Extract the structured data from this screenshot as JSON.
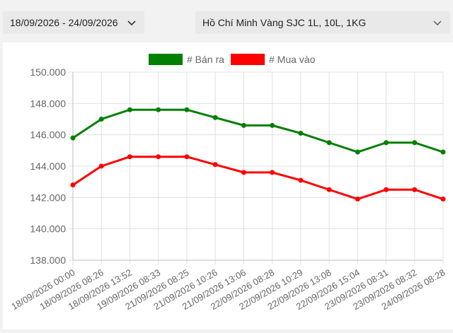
{
  "filters": {
    "date_range": "18/09/2026 - 24/09/2026",
    "location_product": "Hồ Chí Minh Vàng SJC 1L, 10L, 1KG"
  },
  "chart_data": {
    "type": "line",
    "categories": [
      "18/09/2026 00:00",
      "18/09/2026 08:26",
      "18/09/2026 13:52",
      "19/09/2026 08:33",
      "21/09/2026 08:25",
      "21/09/2026 10:26",
      "21/09/2026 13:06",
      "22/09/2026 08:28",
      "22/09/2026 10:29",
      "22/09/2026 13:08",
      "22/09/2026 15:04",
      "23/09/2026 08:31",
      "23/09/2026 08:32",
      "24/09/2026 08:28"
    ],
    "series": [
      {
        "name": "# Bán ra",
        "color": "#008000",
        "values": [
          145.8,
          147.0,
          147.6,
          147.6,
          147.6,
          147.1,
          146.6,
          146.6,
          146.1,
          145.5,
          144.9,
          145.5,
          145.5,
          144.9
        ]
      },
      {
        "name": "# Mua vào",
        "color": "#ff0000",
        "values": [
          142.8,
          144.0,
          144.6,
          144.6,
          144.6,
          144.1,
          143.6,
          143.6,
          143.1,
          142.5,
          141.9,
          142.5,
          142.5,
          141.9
        ]
      }
    ],
    "ylim": [
      138,
      150
    ],
    "yticks": [
      "138.000",
      "140.000",
      "142.000",
      "144.000",
      "146.000",
      "148.000",
      "150.000"
    ],
    "legend_position": "top",
    "grid": true
  }
}
